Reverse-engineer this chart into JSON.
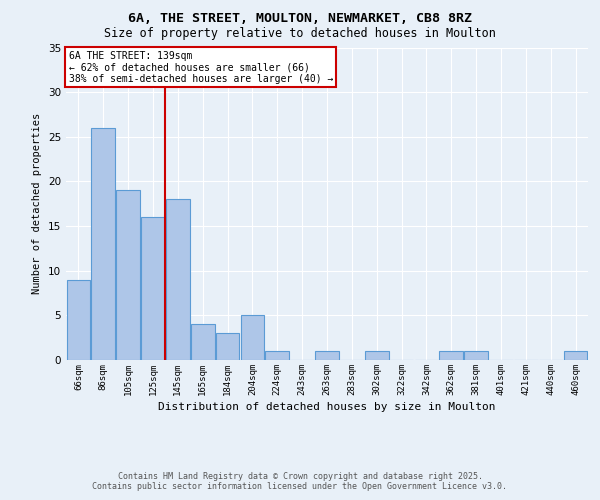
{
  "title1": "6A, THE STREET, MOULTON, NEWMARKET, CB8 8RZ",
  "title2": "Size of property relative to detached houses in Moulton",
  "xlabel": "Distribution of detached houses by size in Moulton",
  "ylabel": "Number of detached properties",
  "categories": [
    "66sqm",
    "86sqm",
    "105sqm",
    "125sqm",
    "145sqm",
    "165sqm",
    "184sqm",
    "204sqm",
    "224sqm",
    "243sqm",
    "263sqm",
    "283sqm",
    "302sqm",
    "322sqm",
    "342sqm",
    "362sqm",
    "381sqm",
    "401sqm",
    "421sqm",
    "440sqm",
    "460sqm"
  ],
  "values": [
    9,
    26,
    19,
    16,
    18,
    4,
    3,
    5,
    1,
    0,
    1,
    0,
    1,
    0,
    0,
    1,
    1,
    0,
    0,
    0,
    1
  ],
  "bar_color": "#aec6e8",
  "bar_edgecolor": "#5b9bd5",
  "bar_linewidth": 0.8,
  "vline_x_index": 4,
  "vline_color": "#cc0000",
  "annotation_line1": "6A THE STREET: 139sqm",
  "annotation_line2": "← 62% of detached houses are smaller (66)",
  "annotation_line3": "38% of semi-detached houses are larger (40) →",
  "annotation_box_color": "#ffffff",
  "annotation_box_edgecolor": "#cc0000",
  "ylim": [
    0,
    35
  ],
  "yticks": [
    0,
    5,
    10,
    15,
    20,
    25,
    30,
    35
  ],
  "background_color": "#e8f0f8",
  "plot_background": "#e8f0f8",
  "grid_color": "#ffffff",
  "footer_line1": "Contains HM Land Registry data © Crown copyright and database right 2025.",
  "footer_line2": "Contains public sector information licensed under the Open Government Licence v3.0."
}
